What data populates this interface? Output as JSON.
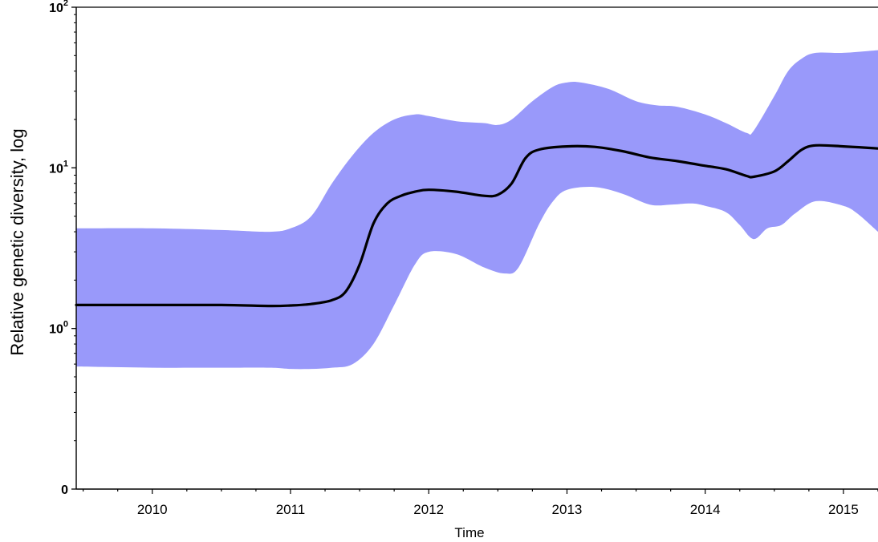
{
  "chart_data": {
    "type": "area",
    "xlabel": "Time",
    "ylabel": "Relative genetic diversity, log",
    "yscale": "log",
    "xlim": [
      2009.45,
      2015.25
    ],
    "ylim": [
      0.1,
      100
    ],
    "x_ticks": [
      "2010",
      "2011",
      "2012",
      "2013",
      "2014",
      "2015"
    ],
    "y_ticks": [
      {
        "base": "0",
        "exp": "",
        "value": 0.1
      },
      {
        "base": "10",
        "exp": "0",
        "value": 1
      },
      {
        "base": "10",
        "exp": "1",
        "value": 10
      },
      {
        "base": "10",
        "exp": "2",
        "value": 100
      }
    ],
    "grid": false,
    "colors": {
      "band": "#9999fa",
      "median": "#000000"
    },
    "series": [
      {
        "role": "median",
        "x": [
          2009.45,
          2010.0,
          2010.5,
          2010.85,
          2011.0,
          2011.15,
          2011.3,
          2011.4,
          2011.5,
          2011.6,
          2011.7,
          2011.8,
          2011.9,
          2012.0,
          2012.2,
          2012.4,
          2012.5,
          2012.6,
          2012.7,
          2012.8,
          2013.0,
          2013.2,
          2013.4,
          2013.6,
          2013.8,
          2014.0,
          2014.15,
          2014.3,
          2014.35,
          2014.5,
          2014.6,
          2014.7,
          2014.8,
          2015.0,
          2015.25
        ],
        "y": [
          1.4,
          1.4,
          1.4,
          1.38,
          1.39,
          1.42,
          1.5,
          1.7,
          2.5,
          4.5,
          6.0,
          6.7,
          7.1,
          7.3,
          7.1,
          6.7,
          6.8,
          8.0,
          11.5,
          13.0,
          13.6,
          13.5,
          12.7,
          11.6,
          11.0,
          10.3,
          9.8,
          8.9,
          8.8,
          9.5,
          11.0,
          13.0,
          13.8,
          13.6,
          13.2
        ]
      },
      {
        "role": "upper",
        "x": [
          2009.45,
          2010.0,
          2010.5,
          2010.85,
          2011.0,
          2011.15,
          2011.3,
          2011.45,
          2011.6,
          2011.75,
          2011.9,
          2012.0,
          2012.2,
          2012.4,
          2012.5,
          2012.6,
          2012.75,
          2012.9,
          2013.0,
          2013.1,
          2013.3,
          2013.5,
          2013.65,
          2013.8,
          2014.0,
          2014.15,
          2014.3,
          2014.35,
          2014.5,
          2014.6,
          2014.7,
          2014.8,
          2015.0,
          2015.25
        ],
        "y": [
          4.2,
          4.2,
          4.1,
          4.0,
          4.2,
          5.0,
          8.0,
          12.0,
          16.5,
          20.0,
          21.5,
          21.0,
          19.5,
          19.0,
          18.5,
          20.0,
          26.0,
          32.0,
          34.0,
          34.0,
          31.0,
          26.0,
          24.5,
          24.0,
          21.5,
          19.0,
          16.5,
          17.0,
          28.0,
          40.0,
          48.0,
          52.0,
          52.0,
          54.0
        ]
      },
      {
        "role": "lower",
        "x": [
          2009.45,
          2010.0,
          2010.5,
          2010.85,
          2011.0,
          2011.15,
          2011.3,
          2011.45,
          2011.6,
          2011.75,
          2011.9,
          2012.0,
          2012.2,
          2012.4,
          2012.55,
          2012.65,
          2012.8,
          2012.9,
          2013.0,
          2013.2,
          2013.4,
          2013.6,
          2013.75,
          2013.9,
          2014.0,
          2014.15,
          2014.25,
          2014.35,
          2014.45,
          2014.55,
          2014.65,
          2014.8,
          2015.0,
          2015.1,
          2015.25
        ],
        "y": [
          0.58,
          0.57,
          0.57,
          0.57,
          0.56,
          0.56,
          0.57,
          0.6,
          0.8,
          1.4,
          2.5,
          3.0,
          2.9,
          2.4,
          2.2,
          2.4,
          4.5,
          6.2,
          7.3,
          7.6,
          6.9,
          5.9,
          5.9,
          6.0,
          5.8,
          5.3,
          4.4,
          3.6,
          4.2,
          4.4,
          5.2,
          6.2,
          5.8,
          5.2,
          4.0
        ]
      }
    ]
  }
}
